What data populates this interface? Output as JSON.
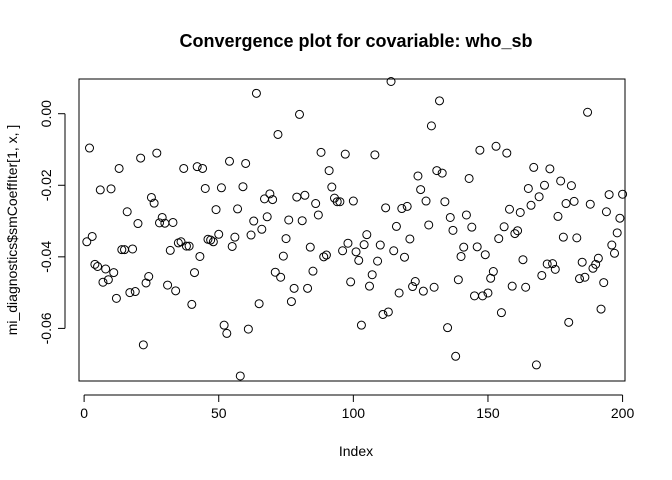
{
  "chart_data": {
    "type": "scatter",
    "title": "Convergence plot for covariable:   who_sb",
    "xlabel": "Index",
    "ylabel": "mi_diagnostics$smCoeffIter[1, x, ]",
    "xlim": [
      -1.9,
      200.9
    ],
    "ylim": [
      -0.0747,
      0.0097
    ],
    "xticks": [
      0,
      50,
      100,
      150,
      200
    ],
    "xtick_labels": [
      "0",
      "50",
      "100",
      "150",
      "200"
    ],
    "yticks": [
      -0.06,
      -0.04,
      -0.02,
      0.0
    ],
    "ytick_labels": [
      "-0.06",
      "-0.04",
      "-0.02",
      "0.00"
    ],
    "grid": false,
    "legend": "none",
    "point_style": "open-circle",
    "series": [
      {
        "x": [
          1,
          2,
          3,
          4,
          5,
          6,
          7,
          8,
          9,
          10,
          11,
          12,
          13,
          14,
          15,
          16,
          17,
          18,
          19,
          20,
          21,
          22,
          23,
          24,
          25,
          26,
          27,
          28,
          29,
          30,
          31,
          32,
          33,
          34,
          35,
          36,
          37,
          38,
          39,
          40,
          41,
          42,
          43,
          44,
          45,
          46,
          47,
          48,
          49,
          50,
          51,
          52,
          53,
          54,
          55,
          56,
          57,
          58,
          59,
          60,
          61,
          62,
          63,
          64,
          65,
          66,
          67,
          68,
          69,
          70,
          71,
          72,
          73,
          74,
          75,
          76,
          77,
          78,
          79,
          80,
          81,
          82,
          83,
          84,
          85,
          86,
          87,
          88,
          89,
          90,
          91,
          92,
          93,
          94,
          95,
          96,
          97,
          98,
          99,
          100,
          101,
          102,
          103,
          104,
          105,
          106,
          107,
          108,
          109,
          110,
          111,
          112,
          113,
          114,
          115,
          116,
          117,
          118,
          119,
          120,
          121,
          122,
          123,
          124,
          125,
          126,
          127,
          128,
          129,
          130,
          131,
          132,
          133,
          134,
          135,
          136,
          137,
          138,
          139,
          140,
          141,
          142,
          143,
          144,
          145,
          146,
          147,
          148,
          149,
          150,
          151,
          152,
          153,
          154,
          155,
          156,
          157,
          158,
          159,
          160,
          161,
          162,
          163,
          164,
          165,
          166,
          167,
          168,
          169,
          170,
          171,
          172,
          173,
          174,
          175,
          176,
          177,
          178,
          179,
          180,
          181,
          182,
          183,
          184,
          185,
          186,
          187,
          188,
          189,
          190,
          191,
          192,
          193,
          194,
          195,
          196,
          197,
          198,
          199,
          200
        ],
        "y": [
          -0.0358,
          -0.0096,
          -0.0343,
          -0.0421,
          -0.0427,
          -0.0213,
          -0.0471,
          -0.0434,
          -0.0464,
          -0.021,
          -0.0444,
          -0.0516,
          -0.0153,
          -0.038,
          -0.038,
          -0.0274,
          -0.05,
          -0.0378,
          -0.0497,
          -0.0307,
          -0.0124,
          -0.0646,
          -0.0473,
          -0.0455,
          -0.0234,
          -0.025,
          -0.011,
          -0.0305,
          -0.029,
          -0.0306,
          -0.0479,
          -0.0382,
          -0.0304,
          -0.0495,
          -0.0361,
          -0.0358,
          -0.0153,
          -0.037,
          -0.037,
          -0.0533,
          -0.0444,
          -0.0148,
          -0.0399,
          -0.0153,
          -0.0209,
          -0.0351,
          -0.0353,
          -0.0358,
          -0.0268,
          -0.0337,
          -0.0207,
          -0.0591,
          -0.0614,
          -0.0133,
          -0.0371,
          -0.0345,
          -0.0266,
          -0.0733,
          -0.0204,
          -0.0139,
          -0.0602,
          -0.0339,
          -0.03,
          0.0057,
          -0.0531,
          -0.0323,
          -0.0238,
          -0.0288,
          -0.0224,
          -0.024,
          -0.0443,
          -0.0058,
          -0.0457,
          -0.0398,
          -0.0349,
          -0.0297,
          -0.0525,
          -0.0488,
          -0.0233,
          -0.0002,
          -0.0299,
          -0.0228,
          -0.0488,
          -0.0373,
          -0.044,
          -0.0251,
          -0.0283,
          -0.0108,
          -0.04,
          -0.0395,
          -0.0159,
          -0.0205,
          -0.0236,
          -0.0246,
          -0.0246,
          -0.0383,
          -0.0113,
          -0.0362,
          -0.047,
          -0.0244,
          -0.0386,
          -0.041,
          -0.0591,
          -0.0366,
          -0.0338,
          -0.0482,
          -0.045,
          -0.0115,
          -0.0412,
          -0.0367,
          -0.0561,
          -0.0263,
          -0.0554,
          0.009,
          -0.0383,
          -0.0315,
          -0.0501,
          -0.0265,
          -0.0401,
          -0.0259,
          -0.035,
          -0.0483,
          -0.0469,
          -0.0174,
          -0.0212,
          -0.0496,
          -0.0244,
          -0.0311,
          -0.0034,
          -0.0485,
          -0.0159,
          0.0036,
          -0.0166,
          -0.0246,
          -0.0598,
          -0.029,
          -0.0326,
          -0.0678,
          -0.0464,
          -0.0399,
          -0.0373,
          -0.0283,
          -0.0181,
          -0.0317,
          -0.0509,
          -0.0372,
          -0.0102,
          -0.0509,
          -0.0394,
          -0.0501,
          -0.046,
          -0.0441,
          -0.0091,
          -0.0349,
          -0.0556,
          -0.0316,
          -0.011,
          -0.0267,
          -0.0482,
          -0.0335,
          -0.0327,
          -0.0276,
          -0.0408,
          -0.0485,
          -0.0209,
          -0.0256,
          -0.015,
          -0.0702,
          -0.0232,
          -0.0452,
          -0.02,
          -0.042,
          -0.0154,
          -0.0419,
          -0.0435,
          -0.0287,
          -0.0188,
          -0.0345,
          -0.0251,
          -0.0583,
          -0.0201,
          -0.0245,
          -0.0347,
          -0.0461,
          -0.0415,
          -0.0457,
          0.0004,
          -0.0253,
          -0.0432,
          -0.0421,
          -0.0404,
          -0.0546,
          -0.0472,
          -0.0274,
          -0.0226,
          -0.0367,
          -0.039,
          -0.0333,
          -0.0292,
          -0.0225
        ]
      }
    ]
  }
}
